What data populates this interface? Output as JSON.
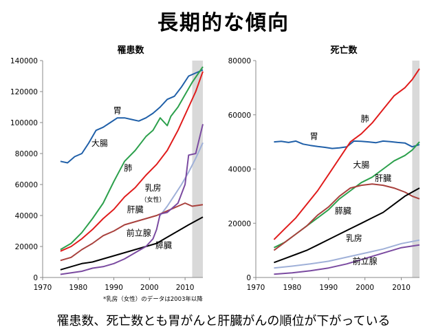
{
  "title": "長期的な傾向",
  "caption": "罹患数、死亡数とも胃がんと肝臓がんの順位が下がっている",
  "footnote": "*乳房（女性）のデータは2003年以降",
  "chart_data": [
    {
      "type": "line",
      "title": "罹患数",
      "xlim": [
        1970,
        2015
      ],
      "ylim": [
        0,
        140000
      ],
      "xticks": [
        "1970",
        "1980",
        "1990",
        "2000",
        "2010"
      ],
      "yticks": [
        "0",
        "20000",
        "40000",
        "60000",
        "80000",
        "100000",
        "120000",
        "140000"
      ],
      "shaded_range": [
        2012,
        2015
      ],
      "grid": false,
      "series": [
        {
          "name": "胃",
          "color": "#1f5fa8",
          "points": [
            [
              1975,
              75000
            ],
            [
              1977,
              74000
            ],
            [
              1979,
              78000
            ],
            [
              1981,
              80000
            ],
            [
              1983,
              87000
            ],
            [
              1985,
              95000
            ],
            [
              1987,
              97000
            ],
            [
              1989,
              100000
            ],
            [
              1991,
              103000
            ],
            [
              1993,
              103000
            ],
            [
              1995,
              102000
            ],
            [
              1997,
              101000
            ],
            [
              1999,
              103000
            ],
            [
              2001,
              106000
            ],
            [
              2003,
              110000
            ],
            [
              2005,
              115000
            ],
            [
              2007,
              117000
            ],
            [
              2009,
              123000
            ],
            [
              2011,
              130000
            ],
            [
              2013,
              132000
            ],
            [
              2015,
              134000
            ]
          ]
        },
        {
          "name": "大腸",
          "color": "#2ca04c",
          "points": [
            [
              1975,
              18000
            ],
            [
              1978,
              22000
            ],
            [
              1981,
              29000
            ],
            [
              1984,
              38000
            ],
            [
              1987,
              48000
            ],
            [
              1990,
              62000
            ],
            [
              1993,
              75000
            ],
            [
              1996,
              82000
            ],
            [
              1999,
              91000
            ],
            [
              2001,
              95000
            ],
            [
              2003,
              103000
            ],
            [
              2005,
              98000
            ],
            [
              2006,
              104000
            ],
            [
              2008,
              110000
            ],
            [
              2010,
              118000
            ],
            [
              2012,
              126000
            ],
            [
              2015,
              136000
            ]
          ]
        },
        {
          "name": "肺",
          "color": "#e01b1b",
          "points": [
            [
              1975,
              17000
            ],
            [
              1978,
              20000
            ],
            [
              1981,
              25000
            ],
            [
              1984,
              31000
            ],
            [
              1987,
              38000
            ],
            [
              1990,
              44000
            ],
            [
              1993,
              52000
            ],
            [
              1996,
              58000
            ],
            [
              1999,
              66000
            ],
            [
              2002,
              73000
            ],
            [
              2005,
              82000
            ],
            [
              2008,
              95000
            ],
            [
              2011,
              110000
            ],
            [
              2013,
              120000
            ],
            [
              2015,
              133000
            ]
          ]
        },
        {
          "name": "乳房（女性）",
          "color": "#9fb0d8",
          "points": [
            [
              2003,
              40000
            ],
            [
              2005,
              46000
            ],
            [
              2007,
              53000
            ],
            [
              2009,
              60000
            ],
            [
              2011,
              68000
            ],
            [
              2013,
              77000
            ],
            [
              2015,
              87000
            ]
          ]
        },
        {
          "name": "肝臓",
          "color": "#a8403c",
          "points": [
            [
              1975,
              11000
            ],
            [
              1978,
              13000
            ],
            [
              1981,
              18000
            ],
            [
              1984,
              22000
            ],
            [
              1987,
              27000
            ],
            [
              1990,
              30000
            ],
            [
              1993,
              34000
            ],
            [
              1996,
              36000
            ],
            [
              1999,
              38000
            ],
            [
              2002,
              40000
            ],
            [
              2005,
              43000
            ],
            [
              2008,
              46000
            ],
            [
              2010,
              48000
            ],
            [
              2012,
              46000
            ],
            [
              2015,
              47000
            ]
          ]
        },
        {
          "name": "前立腺",
          "color": "#000000",
          "points": [
            [
              1975,
              5000
            ],
            [
              1978,
              7000
            ],
            [
              1981,
              9000
            ],
            [
              1984,
              10000
            ],
            [
              1987,
              12000
            ],
            [
              1990,
              14000
            ],
            [
              1993,
              16000
            ],
            [
              1996,
              18000
            ],
            [
              1999,
              20000
            ],
            [
              2002,
              22000
            ],
            [
              2005,
              26000
            ],
            [
              2008,
              30000
            ],
            [
              2011,
              34000
            ],
            [
              2015,
              39000
            ]
          ]
        },
        {
          "name": "膵臓",
          "color": "#7a4aa0",
          "points": [
            [
              1975,
              2000
            ],
            [
              1978,
              3000
            ],
            [
              1981,
              4000
            ],
            [
              1984,
              6000
            ],
            [
              1987,
              7000
            ],
            [
              1990,
              9000
            ],
            [
              1993,
              12000
            ],
            [
              1996,
              16000
            ],
            [
              1999,
              20000
            ],
            [
              2001,
              25000
            ],
            [
              2002,
              31000
            ],
            [
              2003,
              41000
            ],
            [
              2005,
              42000
            ],
            [
              2008,
              48000
            ],
            [
              2010,
              60000
            ],
            [
              2011,
              79000
            ],
            [
              2013,
              80000
            ],
            [
              2015,
              99000
            ]
          ]
        }
      ],
      "labels": [
        {
          "text": "胃",
          "x": 1991,
          "y": 106000
        },
        {
          "text": "大腸",
          "x": 1986,
          "y": 85000
        },
        {
          "text": "肺",
          "x": 1994,
          "y": 69000
        },
        {
          "text": "乳房",
          "x": 2001,
          "y": 56000
        },
        {
          "text": "（女性）",
          "x": 2001,
          "y": 49000
        },
        {
          "text": "肝臓",
          "x": 1996,
          "y": 42000
        },
        {
          "text": "前立腺",
          "x": 1997,
          "y": 27000
        },
        {
          "text": "膵臓",
          "x": 2004,
          "y": 19000
        }
      ]
    },
    {
      "type": "line",
      "title": "死亡数",
      "xlim": [
        1970,
        2015
      ],
      "ylim": [
        0,
        80000
      ],
      "xticks": [
        "1970",
        "1980",
        "1990",
        "2000",
        "2010"
      ],
      "yticks": [
        "0",
        "20000",
        "40000",
        "60000",
        "80000"
      ],
      "shaded_range": [
        2013,
        2015
      ],
      "grid": false,
      "series": [
        {
          "name": "胃",
          "color": "#1f5fa8",
          "points": [
            [
              1975,
              50000
            ],
            [
              1977,
              50200
            ],
            [
              1979,
              49800
            ],
            [
              1981,
              50300
            ],
            [
              1983,
              49200
            ],
            [
              1985,
              48700
            ],
            [
              1987,
              48300
            ],
            [
              1989,
              48000
            ],
            [
              1991,
              47600
            ],
            [
              1993,
              47800
            ],
            [
              1995,
              48200
            ],
            [
              1997,
              50300
            ],
            [
              1999,
              50200
            ],
            [
              2001,
              50000
            ],
            [
              2003,
              49700
            ],
            [
              2005,
              50300
            ],
            [
              2007,
              50100
            ],
            [
              2009,
              49800
            ],
            [
              2011,
              49600
            ],
            [
              2013,
              48200
            ],
            [
              2015,
              49000
            ]
          ]
        },
        {
          "name": "肺",
          "color": "#e01b1b",
          "points": [
            [
              1975,
              14000
            ],
            [
              1978,
              18000
            ],
            [
              1981,
              22000
            ],
            [
              1984,
              27000
            ],
            [
              1987,
              32000
            ],
            [
              1990,
              38000
            ],
            [
              1993,
              44000
            ],
            [
              1996,
              50000
            ],
            [
              1999,
              53000
            ],
            [
              2002,
              57000
            ],
            [
              2005,
              62000
            ],
            [
              2008,
              67000
            ],
            [
              2011,
              70000
            ],
            [
              2013,
              73000
            ],
            [
              2015,
              77000
            ]
          ]
        },
        {
          "name": "大腸",
          "color": "#2ca04c",
          "points": [
            [
              1975,
              11000
            ],
            [
              1978,
              13000
            ],
            [
              1981,
              16000
            ],
            [
              1984,
              19000
            ],
            [
              1987,
              22000
            ],
            [
              1990,
              25000
            ],
            [
              1993,
              29000
            ],
            [
              1996,
              32000
            ],
            [
              1999,
              35000
            ],
            [
              2002,
              37000
            ],
            [
              2005,
              40000
            ],
            [
              2008,
              43000
            ],
            [
              2011,
              45000
            ],
            [
              2013,
              47000
            ],
            [
              2015,
              50000
            ]
          ]
        },
        {
          "name": "肝臓",
          "color": "#a8403c",
          "points": [
            [
              1975,
              10000
            ],
            [
              1978,
              13000
            ],
            [
              1981,
              16000
            ],
            [
              1984,
              19000
            ],
            [
              1987,
              23000
            ],
            [
              1990,
              26000
            ],
            [
              1993,
              30000
            ],
            [
              1996,
              33000
            ],
            [
              1999,
              34000
            ],
            [
              2002,
              34500
            ],
            [
              2005,
              34000
            ],
            [
              2008,
              33000
            ],
            [
              2011,
              31500
            ],
            [
              2013,
              30000
            ],
            [
              2015,
              29000
            ]
          ]
        },
        {
          "name": "膵臓",
          "color": "#000000",
          "points": [
            [
              1975,
              5500
            ],
            [
              1978,
              7000
            ],
            [
              1981,
              8500
            ],
            [
              1984,
              10000
            ],
            [
              1987,
              12000
            ],
            [
              1990,
              14000
            ],
            [
              1993,
              16000
            ],
            [
              1996,
              18000
            ],
            [
              1999,
              20000
            ],
            [
              2002,
              22000
            ],
            [
              2005,
              24000
            ],
            [
              2008,
              27000
            ],
            [
              2011,
              30000
            ],
            [
              2013,
              31500
            ],
            [
              2015,
              33000
            ]
          ]
        },
        {
          "name": "乳房",
          "color": "#9fb0d8",
          "points": [
            [
              1975,
              3500
            ],
            [
              1980,
              4200
            ],
            [
              1985,
              5000
            ],
            [
              1990,
              6000
            ],
            [
              1995,
              7500
            ],
            [
              2000,
              9000
            ],
            [
              2005,
              10500
            ],
            [
              2010,
              12500
            ],
            [
              2015,
              13800
            ]
          ]
        },
        {
          "name": "前立腺",
          "color": "#7a4aa0",
          "points": [
            [
              1975,
              1200
            ],
            [
              1980,
              1700
            ],
            [
              1985,
              2500
            ],
            [
              1990,
              3500
            ],
            [
              1995,
              5000
            ],
            [
              2000,
              7000
            ],
            [
              2005,
              9000
            ],
            [
              2010,
              11000
            ],
            [
              2015,
              12000
            ]
          ]
        }
      ],
      "labels": [
        {
          "text": "胃",
          "x": 1986,
          "y": 51000
        },
        {
          "text": "肺",
          "x": 2000,
          "y": 57500
        },
        {
          "text": "大腸",
          "x": 1999,
          "y": 40500
        },
        {
          "text": "肝臓",
          "x": 2005,
          "y": 35500
        },
        {
          "text": "膵臓",
          "x": 1994,
          "y": 23500
        },
        {
          "text": "乳房",
          "x": 1997,
          "y": 13500
        },
        {
          "text": "前立腺",
          "x": 2000,
          "y": 5000
        }
      ]
    }
  ]
}
